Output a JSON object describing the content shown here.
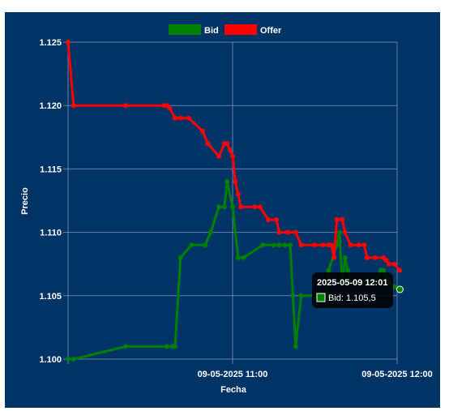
{
  "chart_data": {
    "type": "line",
    "title": "",
    "xlabel": "Fecha",
    "ylabel": "Precio",
    "ylim": [
      1.1,
      1.125
    ],
    "y_ticks": [
      "1.100",
      "1.105",
      "1.110",
      "1.115",
      "1.120",
      "1.125"
    ],
    "x_ticks": [
      {
        "time": "10:00",
        "label": ""
      },
      {
        "time": "11:00",
        "label": "09-05-2025 11:00"
      },
      {
        "time": "12:00",
        "label": "09-05-2025 12:00"
      }
    ],
    "xlim": [
      "10:00",
      "12:00"
    ],
    "grid": true,
    "legend_position": "top",
    "background_color": "#003366",
    "grid_color": "#8fa3bb",
    "series": [
      {
        "name": "Bid",
        "color": "#008000",
        "points": [
          [
            "10:00",
            1.1
          ],
          [
            "10:02",
            1.1
          ],
          [
            "10:21",
            1.101
          ],
          [
            "10:36",
            1.101
          ],
          [
            "10:38",
            1.101
          ],
          [
            "10:39",
            1.101
          ],
          [
            "10:41",
            1.108
          ],
          [
            "10:45",
            1.109
          ],
          [
            "10:50",
            1.109
          ],
          [
            "10:52",
            1.11
          ],
          [
            "10:55",
            1.112
          ],
          [
            "10:57",
            1.112
          ],
          [
            "10:58",
            1.114
          ],
          [
            "11:00",
            1.112
          ],
          [
            "11:02",
            1.108
          ],
          [
            "11:04",
            1.108
          ],
          [
            "11:11",
            1.109
          ],
          [
            "11:15",
            1.109
          ],
          [
            "11:17",
            1.109
          ],
          [
            "11:19",
            1.109
          ],
          [
            "11:21",
            1.109
          ],
          [
            "11:22",
            1.105
          ],
          [
            "11:23",
            1.101
          ],
          [
            "11:25",
            1.105
          ],
          [
            "11:30",
            1.105
          ],
          [
            "11:34",
            1.105
          ],
          [
            "11:35",
            1.107
          ],
          [
            "11:38",
            1.109
          ],
          [
            "11:39",
            1.11
          ],
          [
            "11:40",
            1.106
          ],
          [
            "11:41",
            1.108
          ],
          [
            "11:42",
            1.107
          ],
          [
            "11:43",
            1.106
          ],
          [
            "11:47",
            1.106
          ],
          [
            "11:50",
            1.106
          ],
          [
            "11:52",
            1.106
          ],
          [
            "11:54",
            1.107
          ],
          [
            "11:55",
            1.107
          ],
          [
            "11:57",
            1.106
          ],
          [
            "11:59",
            1.1057
          ],
          [
            "12:01",
            1.1055
          ]
        ]
      },
      {
        "name": "Offer",
        "color": "#ff0000",
        "points": [
          [
            "10:00",
            1.125
          ],
          [
            "10:02",
            1.12
          ],
          [
            "10:21",
            1.12
          ],
          [
            "10:35",
            1.12
          ],
          [
            "10:36",
            1.12
          ],
          [
            "10:37",
            1.1198
          ],
          [
            "10:39",
            1.119
          ],
          [
            "10:41",
            1.119
          ],
          [
            "10:44",
            1.119
          ],
          [
            "10:49",
            1.118
          ],
          [
            "10:51",
            1.117
          ],
          [
            "10:55",
            1.116
          ],
          [
            "10:57",
            1.117
          ],
          [
            "10:58",
            1.117
          ],
          [
            "10:59",
            1.1165
          ],
          [
            "11:00",
            1.116
          ],
          [
            "11:01",
            1.114
          ],
          [
            "11:02",
            1.113
          ],
          [
            "11:03",
            1.112
          ],
          [
            "11:08",
            1.112
          ],
          [
            "11:10",
            1.112
          ],
          [
            "11:13",
            1.111
          ],
          [
            "11:16",
            1.111
          ],
          [
            "11:17",
            1.11
          ],
          [
            "11:20",
            1.11
          ],
          [
            "11:23",
            1.11
          ],
          [
            "11:25",
            1.109
          ],
          [
            "11:30",
            1.109
          ],
          [
            "11:33",
            1.109
          ],
          [
            "11:35",
            1.109
          ],
          [
            "11:36",
            1.109
          ],
          [
            "11:37",
            1.108
          ],
          [
            "11:38",
            1.111
          ],
          [
            "11:40",
            1.111
          ],
          [
            "11:41",
            1.11
          ],
          [
            "11:43",
            1.109
          ],
          [
            "11:46",
            1.109
          ],
          [
            "11:48",
            1.109
          ],
          [
            "11:49",
            1.108
          ],
          [
            "11:52",
            1.108
          ],
          [
            "11:55",
            1.108
          ],
          [
            "11:56",
            1.1078
          ],
          [
            "11:57",
            1.1075
          ],
          [
            "11:59",
            1.1075
          ],
          [
            "12:01",
            1.107
          ]
        ]
      }
    ],
    "tooltip": {
      "title": "2025-05-09 12:01",
      "series": "Bid",
      "label": "Bid: 1.105,5",
      "time": "12:01",
      "value": 1.1055
    }
  }
}
